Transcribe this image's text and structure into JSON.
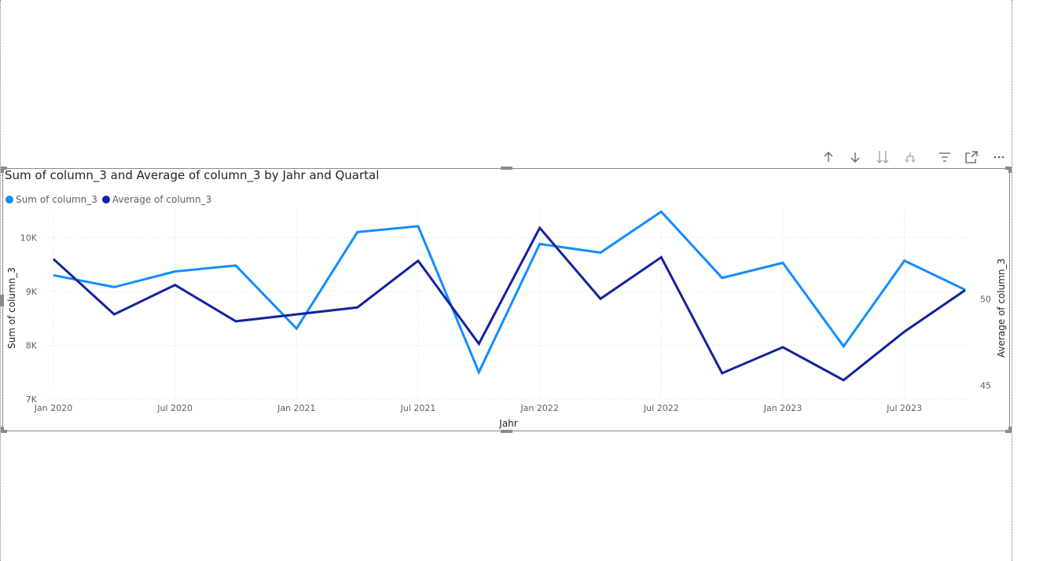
{
  "toolbar": {
    "buttons": [
      {
        "name": "drill-up-icon"
      },
      {
        "name": "drill-down-icon"
      },
      {
        "name": "expand-next-level-icon"
      },
      {
        "name": "expand-hierarchy-icon"
      },
      {
        "name": "filter-icon"
      },
      {
        "name": "focus-mode-icon"
      },
      {
        "name": "more-options-icon"
      }
    ]
  },
  "colors": {
    "sum": "#118DFF",
    "avg": "#12239E",
    "grid": "#d9d9d9",
    "frame": "#8a8a8a"
  },
  "chart_data": {
    "type": "line",
    "title": "Sum of column_3 and Average of column_3 by Jahr and Quartal",
    "xlabel": "Jahr",
    "ylabel": "Sum of column_3",
    "y2label": "Average of column_3",
    "legend_position": "top-left",
    "grid": true,
    "x": [
      "2020-01",
      "2020-04",
      "2020-07",
      "2020-10",
      "2021-01",
      "2021-04",
      "2021-07",
      "2021-10",
      "2022-01",
      "2022-04",
      "2022-07",
      "2022-10",
      "2023-01",
      "2023-04",
      "2023-07",
      "2023-10"
    ],
    "x_ticks": [
      "Jan 2020",
      "Jul 2020",
      "Jan 2021",
      "Jul 2021",
      "Jan 2022",
      "Jul 2022",
      "Jan 2023",
      "Jul 2023"
    ],
    "y_ticks": [
      "7K",
      "8K",
      "9K",
      "10K"
    ],
    "y_tick_values": [
      7000,
      8000,
      9000,
      10000
    ],
    "y2_ticks": [
      "45",
      "50"
    ],
    "y2_tick_values": [
      45,
      50
    ],
    "ylim": [
      7000,
      10500
    ],
    "y2lim": [
      44.2,
      55.1
    ],
    "series": [
      {
        "name": "Sum of column_3",
        "axis": "left",
        "color": "#118DFF",
        "values": [
          9300,
          9080,
          9370,
          9480,
          8310,
          10100,
          10210,
          7500,
          9880,
          9720,
          10480,
          9250,
          9530,
          7980,
          9570,
          9030
        ]
      },
      {
        "name": "Average of column_3",
        "axis": "right",
        "color": "#12239E",
        "values": [
          52.3,
          49.1,
          50.8,
          48.7,
          49.1,
          49.5,
          52.2,
          47.4,
          54.1,
          50.0,
          52.4,
          45.7,
          47.2,
          45.3,
          48.1,
          50.5
        ]
      }
    ]
  }
}
